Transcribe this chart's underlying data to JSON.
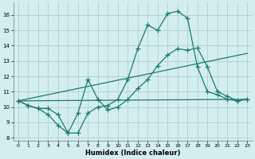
{
  "xlabel": "Humidex (Indice chaleur)",
  "bg_color": "#d4eeee",
  "grid_color": "#b0d4d4",
  "line_color": "#1a7a6e",
  "xlim": [
    -0.5,
    23.5
  ],
  "ylim": [
    7.8,
    16.8
  ],
  "xticks": [
    0,
    1,
    2,
    3,
    4,
    5,
    6,
    7,
    8,
    9,
    10,
    11,
    12,
    13,
    14,
    15,
    16,
    17,
    18,
    19,
    20,
    21,
    22,
    23
  ],
  "yticks": [
    8,
    9,
    10,
    11,
    12,
    13,
    14,
    15,
    16
  ],
  "line1_x": [
    0,
    1,
    2,
    3,
    4,
    5,
    6,
    7,
    8,
    9,
    10,
    11,
    12,
    13,
    14,
    15,
    16,
    17,
    18,
    19,
    20,
    21,
    22,
    23
  ],
  "line1_y": [
    10.4,
    10.1,
    9.9,
    9.5,
    8.8,
    8.3,
    8.3,
    9.6,
    10.0,
    10.1,
    10.5,
    11.8,
    13.8,
    15.35,
    15.0,
    16.1,
    16.25,
    15.8,
    12.6,
    11.0,
    10.8,
    10.5,
    10.4,
    10.5
  ],
  "line2_x": [
    0,
    1,
    2,
    3,
    4,
    5,
    6,
    7,
    8,
    9,
    10,
    11,
    12,
    13,
    14,
    15,
    16,
    17,
    18,
    19,
    20,
    21,
    22,
    23
  ],
  "line2_y": [
    10.4,
    10.1,
    9.9,
    9.9,
    9.5,
    8.3,
    9.6,
    11.8,
    10.5,
    9.8,
    10.0,
    10.5,
    11.2,
    11.8,
    12.7,
    13.4,
    13.8,
    13.7,
    13.85,
    12.6,
    11.0,
    10.7,
    10.4,
    10.5
  ],
  "line3_x": [
    0,
    23
  ],
  "line3_y": [
    10.4,
    10.5
  ],
  "line4_x": [
    0,
    23
  ],
  "line4_y": [
    10.4,
    13.5
  ]
}
